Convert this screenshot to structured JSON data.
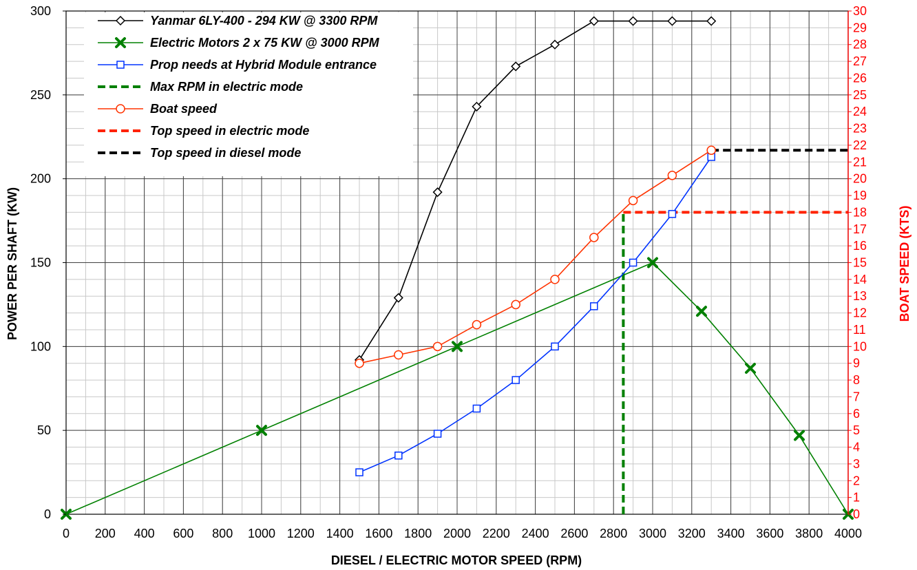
{
  "chart_data": {
    "type": "line",
    "title": "",
    "xlabel": "DIESEL / ELECTRIC MOTOR  SPEED  (RPM)",
    "ylabel": "POWER PER  SHAFT  (KW)",
    "y2label": "BOAT   SPEED   (KTS)",
    "xlim": [
      0,
      4000
    ],
    "ylim": [
      0,
      300
    ],
    "y2lim": [
      0,
      30
    ],
    "x_ticks": [
      0,
      200,
      400,
      600,
      800,
      1000,
      1200,
      1400,
      1600,
      1800,
      2000,
      2200,
      2400,
      2600,
      2800,
      3000,
      3200,
      3400,
      3600,
      3800,
      4000
    ],
    "y_ticks": [
      0,
      50,
      100,
      150,
      200,
      250,
      300
    ],
    "y2_ticks": [
      0,
      1,
      2,
      3,
      4,
      5,
      6,
      7,
      8,
      9,
      10,
      11,
      12,
      13,
      14,
      15,
      16,
      17,
      18,
      19,
      20,
      21,
      22,
      23,
      24,
      25,
      26,
      27,
      28,
      29,
      30
    ],
    "grid": true,
    "legend_position": "top-left",
    "series": [
      {
        "name": "Yanmar 6LY-400 - 294 KW @ 3300 RPM",
        "axis": "left",
        "color": "#000000",
        "marker": "diamond",
        "dashed": false,
        "x": [
          1500,
          1700,
          1900,
          2100,
          2300,
          2500,
          2700,
          2900,
          3100,
          3300
        ],
        "y": [
          92,
          129,
          192,
          243,
          267,
          280,
          294,
          294,
          294,
          294
        ]
      },
      {
        "name": "Electric Motors 2 x 75 KW @ 3000 RPM",
        "axis": "left",
        "color": "#008000",
        "marker": "x",
        "dashed": false,
        "x": [
          0,
          1000,
          2000,
          3000,
          3250,
          3500,
          3750,
          4000
        ],
        "y": [
          0,
          50,
          100,
          150,
          121,
          87,
          47,
          0
        ]
      },
      {
        "name": "Prop needs at Hybrid Module entrance",
        "axis": "left",
        "color": "#0033ff",
        "marker": "square",
        "dashed": false,
        "x": [
          1500,
          1700,
          1900,
          2100,
          2300,
          2500,
          2700,
          2900,
          3100,
          3300
        ],
        "y": [
          25,
          35,
          48,
          63,
          80,
          100,
          124,
          150,
          179,
          213
        ]
      },
      {
        "name": "Max RPM in electric mode",
        "axis": "left",
        "color": "#008000",
        "marker": "none",
        "dashed": true,
        "x": [
          2850,
          2850
        ],
        "y": [
          0,
          180
        ]
      },
      {
        "name": "Boat speed",
        "axis": "right",
        "color": "#ff3300",
        "marker": "circle",
        "dashed": false,
        "x": [
          1500,
          1700,
          1900,
          2100,
          2300,
          2500,
          2700,
          2900,
          3100,
          3300
        ],
        "y": [
          9.0,
          9.5,
          10.0,
          11.3,
          12.5,
          14.0,
          16.5,
          18.7,
          20.2,
          21.7
        ]
      },
      {
        "name": "Top speed in electric mode",
        "axis": "right",
        "color": "#ff2200",
        "marker": "none",
        "dashed": true,
        "x": [
          2850,
          4000
        ],
        "y": [
          18,
          18
        ]
      },
      {
        "name": "Top speed in diesel mode",
        "axis": "right",
        "color": "#000000",
        "marker": "none",
        "dashed": true,
        "x": [
          3300,
          4000
        ],
        "y": [
          21.7,
          21.7
        ]
      }
    ]
  }
}
